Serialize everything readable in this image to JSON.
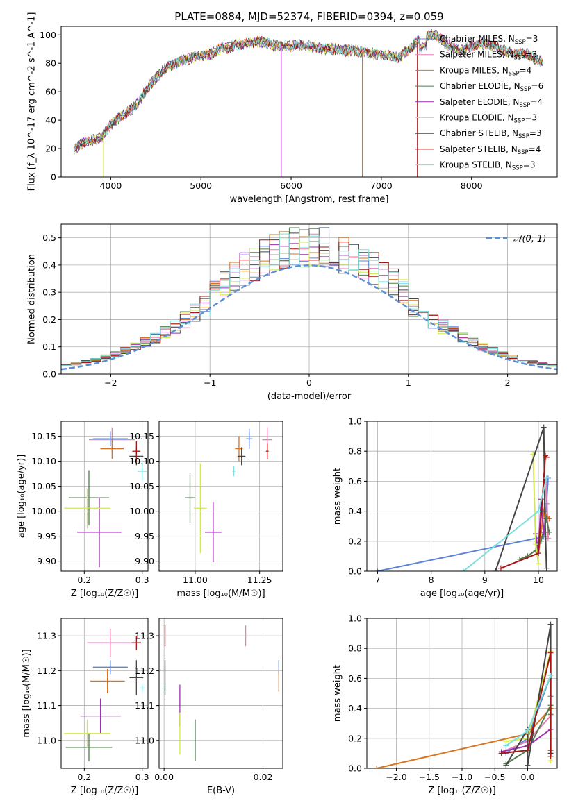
{
  "figure": {
    "title": "PLATE=0884, MJD=52374, FIBERID=0394, z=0.059"
  },
  "models": [
    {
      "name": "Chabrier MILES",
      "nssp": "3",
      "color": "#5b83d6"
    },
    {
      "name": "Salpeter MILES",
      "nssp": "3",
      "color": "#e87fb2"
    },
    {
      "name": "Kroupa MILES",
      "nssp": "4",
      "color": "#d9731f"
    },
    {
      "name": "Chabrier ELODIE",
      "nssp": "6",
      "color": "#4f7d4f"
    },
    {
      "name": "Salpeter ELODIE",
      "nssp": "4",
      "color": "#9b2fae"
    },
    {
      "name": "Kroupa ELODIE",
      "nssp": "3",
      "color": "#d3e84a"
    },
    {
      "name": "Chabrier STELIB",
      "nssp": "3",
      "color": "#454545"
    },
    {
      "name": "Salpeter STELIB",
      "nssp": "4",
      "color": "#a31515"
    },
    {
      "name": "Kroupa STELIB",
      "nssp": "3",
      "color": "#7fdede"
    }
  ],
  "chart_data": [
    {
      "id": "spectrum",
      "type": "line",
      "xlabel": "wavelength [Angstrom, rest frame]",
      "ylabel": "Flux [f_λ 10^-17 erg cm^-2 s^-1 A^-1]",
      "xlim": [
        3450,
        8950
      ],
      "ylim": [
        0,
        106
      ],
      "xticks": [
        "4000",
        "5000",
        "6000",
        "7000",
        "8000"
      ],
      "yticks": [
        "0",
        "20",
        "40",
        "60",
        "80",
        "100"
      ],
      "legend_position": "right",
      "x": [
        3600,
        3700,
        3800,
        3900,
        4000,
        4100,
        4200,
        4300,
        4400,
        4500,
        4600,
        4700,
        4800,
        4900,
        5000,
        5100,
        5200,
        5300,
        5400,
        5500,
        5600,
        5700,
        5800,
        5900,
        6000,
        6100,
        6200,
        6300,
        6400,
        6500,
        6600,
        6700,
        6800,
        6900,
        7000,
        7100,
        7200,
        7300,
        7400,
        7500,
        7600,
        7700,
        7800,
        7900,
        8000,
        8100,
        8200,
        8300,
        8400,
        8500,
        8600,
        8700,
        8800
      ],
      "y": [
        20,
        24,
        26,
        28,
        37,
        42,
        46,
        52,
        62,
        70,
        76,
        80,
        82,
        84,
        86,
        86,
        90,
        91,
        93,
        94,
        95,
        95,
        93,
        92,
        92,
        93,
        92,
        91,
        90,
        90,
        89,
        89,
        88,
        87,
        86,
        85,
        84,
        90,
        95,
        99,
        100,
        95,
        90,
        89,
        92,
        94,
        93,
        91,
        88,
        87,
        87,
        83,
        81
      ]
    },
    {
      "id": "residuals",
      "type": "line",
      "xlabel": "(data-model)/error",
      "ylabel": "Normed distribution",
      "xlim": [
        -2.5,
        2.5
      ],
      "ylim": [
        0,
        0.55
      ],
      "xticks": [
        "−2",
        "−1",
        "0",
        "1",
        "2"
      ],
      "yticks": [
        "0.0",
        "0.1",
        "0.2",
        "0.3",
        "0.4",
        "0.5"
      ],
      "legend": "𝒩(0, 1)",
      "legend_position": "top-right",
      "bin_width": 0.1,
      "bin_start": -2.5,
      "reference": {
        "mean": 0,
        "sigma": 1
      }
    },
    {
      "id": "z-vs-age",
      "type": "scatter",
      "xlabel": "Z [log₁₀(Z/Z☉)]",
      "ylabel": "age  [log₁₀(age/yr)]",
      "xlim": [
        0.16,
        0.31
      ],
      "ylim": [
        9.88,
        10.18
      ],
      "xticks": [
        "0.2",
        "0.3"
      ],
      "yticks": [
        "9.90",
        "9.95",
        "10.00",
        "10.05",
        "10.10",
        "10.15"
      ],
      "points": [
        {
          "x": 0.245,
          "y": 10.145,
          "xerr": 0.03,
          "yerr": 0.015
        },
        {
          "x": 0.248,
          "y": 10.143,
          "xerr": 0.04,
          "yerr": 0.025
        },
        {
          "x": 0.248,
          "y": 10.125,
          "xerr": 0.02,
          "yerr": 0.02
        },
        {
          "x": 0.208,
          "y": 10.027,
          "xerr": 0.035,
          "yerr": 0.055
        },
        {
          "x": 0.226,
          "y": 9.958,
          "xerr": 0.038,
          "yerr": 0.07
        },
        {
          "x": 0.205,
          "y": 10.006,
          "xerr": 0.04,
          "yerr": 0.04
        },
        {
          "x": 0.29,
          "y": 10.11,
          "xerr": 0.012,
          "yerr": 0.018
        },
        {
          "x": 0.29,
          "y": 10.12,
          "xerr": 0.007,
          "yerr": 0.02
        },
        {
          "x": 0.3,
          "y": 10.08,
          "xerr": 0.008,
          "yerr": 0.018
        }
      ]
    },
    {
      "id": "mass-vs-age",
      "type": "scatter",
      "xlabel": "mass [log₁₀(M/M☉)]",
      "ylabel": "",
      "xlim": [
        10.86,
        11.34
      ],
      "ylim": [
        9.88,
        10.18
      ],
      "xticks": [
        "11.00",
        "11.25"
      ],
      "yticks": [
        "9.90",
        "9.95",
        "10.00",
        "10.05",
        "10.10",
        "10.15"
      ],
      "points": [
        {
          "x": 11.21,
          "y": 10.145,
          "xerr": 0.012,
          "yerr": 0.02
        },
        {
          "x": 11.28,
          "y": 10.143,
          "xerr": 0.02,
          "yerr": 0.025
        },
        {
          "x": 11.17,
          "y": 10.125,
          "xerr": 0.015,
          "yerr": 0.025
        },
        {
          "x": 10.98,
          "y": 10.027,
          "xerr": 0.02,
          "yerr": 0.05
        },
        {
          "x": 11.07,
          "y": 9.958,
          "xerr": 0.032,
          "yerr": 0.06
        },
        {
          "x": 11.02,
          "y": 10.006,
          "xerr": 0.025,
          "yerr": 0.09
        },
        {
          "x": 11.18,
          "y": 10.11,
          "xerr": 0.015,
          "yerr": 0.018
        },
        {
          "x": 11.28,
          "y": 10.12,
          "xerr": 0.005,
          "yerr": 0.015
        },
        {
          "x": 11.15,
          "y": 10.08,
          "xerr": 0.005,
          "yerr": 0.01
        }
      ]
    },
    {
      "id": "age-vs-weight",
      "type": "line",
      "xlabel": "age  [log₁₀(age/yr)]",
      "ylabel": "mass weight",
      "xlim": [
        6.8,
        10.35
      ],
      "ylim": [
        0,
        1.0
      ],
      "xticks": [
        "7",
        "8",
        "9",
        "10"
      ],
      "yticks": [
        "0.0",
        "0.2",
        "0.4",
        "0.6",
        "0.8",
        "1.0"
      ],
      "series": [
        {
          "x": [
            7.0,
            10.1,
            10.15,
            10.18
          ],
          "y": [
            0.0,
            0.23,
            0.45,
            0.62
          ]
        },
        {
          "x": [
            10.1,
            10.15,
            10.18
          ],
          "y": [
            0.38,
            0.58,
            0.22
          ]
        },
        {
          "x": [
            10.0,
            10.1,
            10.2
          ],
          "y": [
            0.12,
            0.4,
            0.35
          ]
        },
        {
          "x": [
            9.65,
            9.8,
            9.95,
            10.05,
            10.15,
            10.2
          ],
          "y": [
            0.08,
            0.1,
            0.14,
            0.2,
            0.35,
            0.26
          ]
        },
        {
          "x": [
            9.95,
            10.0,
            10.05,
            10.1
          ],
          "y": [
            0.25,
            0.12,
            0.48,
            0.26
          ]
        },
        {
          "x": [
            9.9,
            9.95,
            10.0
          ],
          "y": [
            0.78,
            0.18,
            0.05
          ]
        },
        {
          "x": [
            9.2,
            10.1,
            10.12,
            10.15
          ],
          "y": [
            0.0,
            0.96,
            0.4,
            0.02
          ]
        },
        {
          "x": [
            9.3,
            10.0,
            10.13,
            10.16
          ],
          "y": [
            0.02,
            0.12,
            0.77,
            0.76
          ]
        },
        {
          "x": [
            8.6,
            10.0,
            10.15
          ],
          "y": [
            0.0,
            0.4,
            0.62
          ]
        }
      ]
    },
    {
      "id": "z-vs-mass",
      "type": "scatter",
      "xlabel": "Z [log₁₀(Z/Z☉)]",
      "ylabel": "mass [log₁₀(M/M☉)]",
      "xlim": [
        0.16,
        0.31
      ],
      "ylim": [
        10.92,
        11.35
      ],
      "xticks": [
        "0.2",
        "0.3"
      ],
      "yticks": [
        "11.0",
        "11.1",
        "11.2",
        "11.3"
      ],
      "points": [
        {
          "x": 0.245,
          "y": 11.21,
          "xerr": 0.03,
          "yerr": 0.02
        },
        {
          "x": 0.245,
          "y": 11.28,
          "xerr": 0.04,
          "yerr": 0.04
        },
        {
          "x": 0.24,
          "y": 11.17,
          "xerr": 0.03,
          "yerr": 0.035
        },
        {
          "x": 0.208,
          "y": 10.98,
          "xerr": 0.04,
          "yerr": 0.04
        },
        {
          "x": 0.228,
          "y": 11.07,
          "xerr": 0.035,
          "yerr": 0.05
        },
        {
          "x": 0.205,
          "y": 11.02,
          "xerr": 0.04,
          "yerr": 0.04
        },
        {
          "x": 0.29,
          "y": 11.18,
          "xerr": 0.012,
          "yerr": 0.05
        },
        {
          "x": 0.29,
          "y": 11.28,
          "xerr": 0.008,
          "yerr": 0.02
        },
        {
          "x": 0.3,
          "y": 11.15,
          "xerr": 0.005,
          "yerr": 0.01
        }
      ]
    },
    {
      "id": "ebv-vs-mass",
      "type": "scatter",
      "xlabel": "E(B-V)",
      "ylabel": "",
      "xlim": [
        -0.001,
        0.024
      ],
      "ylim": [
        10.92,
        11.35
      ],
      "xticks": [
        "0.00",
        "0.02"
      ],
      "yticks": [
        "11.0",
        "11.1",
        "11.2",
        "11.3"
      ],
      "points": [
        {
          "x": 0.0232,
          "y": 11.21,
          "xerr": 0.0,
          "yerr": 0.02
        },
        {
          "x": 0.0165,
          "y": 11.3,
          "xerr": 0.0,
          "yerr": 0.03
        },
        {
          "x": 0.0232,
          "y": 11.17,
          "xerr": 0.0,
          "yerr": 0.03
        },
        {
          "x": 0.0063,
          "y": 11.0,
          "xerr": 0.0,
          "yerr": 0.06
        },
        {
          "x": 0.0032,
          "y": 11.1,
          "xerr": 0.0,
          "yerr": 0.06
        },
        {
          "x": 0.0032,
          "y": 11.02,
          "xerr": 0.0,
          "yerr": 0.06
        },
        {
          "x": 0.0002,
          "y": 11.18,
          "xerr": 0.0,
          "yerr": 0.05
        },
        {
          "x": 0.0002,
          "y": 11.3,
          "xerr": 0.0,
          "yerr": 0.03
        },
        {
          "x": 0.0002,
          "y": 11.15,
          "xerr": 0.0,
          "yerr": 0.01
        }
      ]
    },
    {
      "id": "z-vs-weight",
      "type": "line",
      "xlabel": "Z [log₁₀(Z/Z☉)]",
      "ylabel": "mass weight",
      "xlim": [
        -2.45,
        0.45
      ],
      "ylim": [
        0,
        1.0
      ],
      "xticks": [
        "−2.0",
        "−1.5",
        "−1.0",
        "−0.5",
        "0.0"
      ],
      "yticks": [
        "0.0",
        "0.2",
        "0.4",
        "0.6",
        "0.8",
        "1.0"
      ],
      "series": [
        {
          "x": [
            -0.33,
            0.0,
            0.35,
            0.35
          ],
          "y": [
            0.1,
            0.2,
            0.62,
            0.48
          ]
        },
        {
          "x": [
            -0.33,
            0.0,
            0.35
          ],
          "y": [
            0.12,
            0.18,
            0.35
          ]
        },
        {
          "x": [
            -2.3,
            0.0,
            0.35,
            0.35
          ],
          "y": [
            0.0,
            0.23,
            0.4,
            0.35
          ]
        },
        {
          "x": [
            -0.33,
            0.0,
            0.35,
            0.35
          ],
          "y": [
            0.03,
            0.12,
            0.42,
            0.36
          ]
        },
        {
          "x": [
            -0.4,
            0.0,
            0.35
          ],
          "y": [
            0.11,
            0.15,
            0.26
          ]
        },
        {
          "x": [
            -0.33,
            0.0,
            0.35,
            0.35
          ],
          "y": [
            0.18,
            0.2,
            0.78,
            0.05
          ]
        },
        {
          "x": [
            -0.33,
            0.0,
            0.0,
            0.35,
            0.35
          ],
          "y": [
            0.02,
            0.26,
            0.02,
            0.96,
            0.1
          ]
        },
        {
          "x": [
            -0.4,
            0.0,
            0.35,
            0.35,
            0.35
          ],
          "y": [
            0.1,
            0.12,
            0.77,
            0.12,
            0.08
          ]
        },
        {
          "x": [
            -0.33,
            0.0,
            0.35
          ],
          "y": [
            0.15,
            0.25,
            0.62
          ]
        }
      ]
    }
  ]
}
